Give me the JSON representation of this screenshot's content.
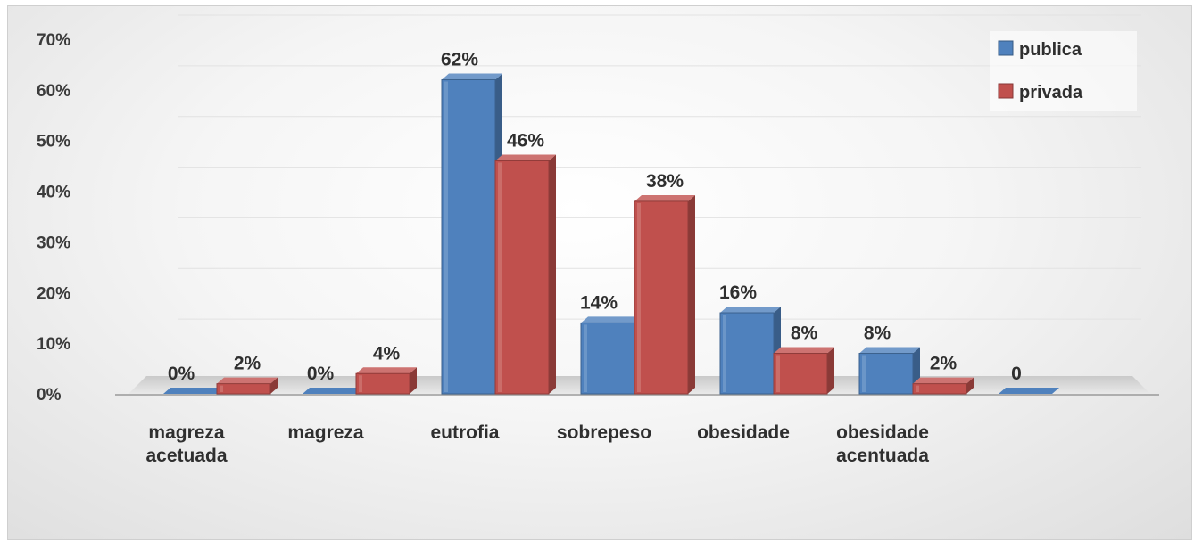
{
  "chart_data": {
    "type": "bar",
    "categories": [
      [
        "magreza",
        "acetuada"
      ],
      [
        "magreza"
      ],
      [
        "eutrofia"
      ],
      [
        "sobrepeso"
      ],
      [
        "obesidade"
      ],
      [
        "obesidade",
        "acentuada"
      ],
      [
        ""
      ]
    ],
    "series": [
      {
        "name": "publica",
        "color": "#4f81bd",
        "values": [
          0,
          0,
          62,
          14,
          16,
          8,
          0
        ],
        "labels": [
          "0%",
          "0%",
          "62%",
          "14%",
          "16%",
          "8%",
          "0"
        ]
      },
      {
        "name": "privada",
        "color": "#c0504d",
        "values": [
          2,
          4,
          46,
          38,
          8,
          2,
          null
        ],
        "labels": [
          "2%",
          "4%",
          "46%",
          "38%",
          "8%",
          "2%",
          ""
        ]
      }
    ],
    "y_ticks": [
      "0%",
      "10%",
      "20%",
      "30%",
      "40%",
      "50%",
      "60%",
      "70%"
    ],
    "ylim": [
      0,
      70
    ],
    "grid": true,
    "legend_position": "top-right",
    "title": "",
    "xlabel": "",
    "ylabel": ""
  }
}
